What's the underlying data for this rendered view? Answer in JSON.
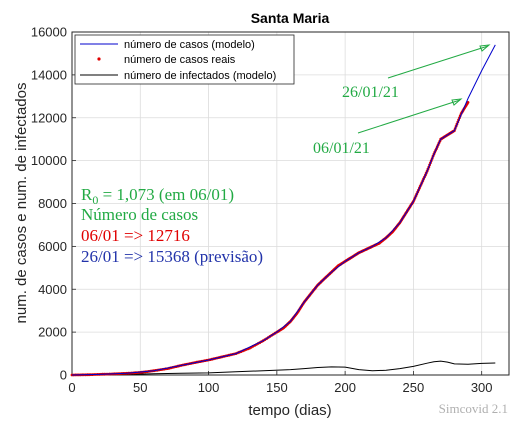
{
  "chart_data": {
    "type": "line",
    "title": "Santa Maria",
    "xlabel": "tempo (dias)",
    "ylabel": "num. de casos e num. de infectados",
    "xlim": [
      0,
      320
    ],
    "ylim": [
      0,
      16000
    ],
    "x_ticks": [
      0,
      50,
      100,
      150,
      200,
      250,
      300
    ],
    "y_ticks": [
      0,
      2000,
      4000,
      6000,
      8000,
      10000,
      12000,
      14000,
      16000
    ],
    "grid": true,
    "legend_position": "top-left",
    "series": [
      {
        "name": "número de casos (modelo)",
        "style": "line",
        "color": "#0000cc",
        "x": [
          0,
          20,
          40,
          60,
          80,
          100,
          120,
          140,
          150,
          160,
          170,
          180,
          190,
          200,
          210,
          220,
          230,
          240,
          250,
          260,
          265,
          270,
          280,
          290,
          300,
          310
        ],
        "y": [
          0,
          30,
          80,
          200,
          450,
          700,
          1000,
          1600,
          2000,
          2500,
          3400,
          4200,
          4800,
          5300,
          5700,
          6000,
          6400,
          7100,
          8100,
          9500,
          10300,
          11000,
          11400,
          12900,
          14200,
          15400
        ]
      },
      {
        "name": "número de casos reais",
        "style": "markers",
        "color": "#e00000",
        "x": [
          0,
          10,
          20,
          30,
          40,
          50,
          60,
          70,
          80,
          90,
          100,
          110,
          120,
          130,
          140,
          150,
          155,
          160,
          165,
          170,
          175,
          180,
          185,
          190,
          195,
          200,
          205,
          210,
          215,
          220,
          225,
          230,
          235,
          240,
          245,
          250,
          255,
          260,
          265,
          270,
          275,
          280,
          285,
          290
        ],
        "y": [
          0,
          10,
          30,
          50,
          80,
          120,
          200,
          300,
          450,
          580,
          700,
          850,
          1000,
          1250,
          1600,
          2000,
          2200,
          2500,
          2900,
          3400,
          3800,
          4200,
          4500,
          4800,
          5100,
          5300,
          5500,
          5700,
          5850,
          6000,
          6150,
          6400,
          6700,
          7100,
          7600,
          8100,
          8800,
          9500,
          10300,
          11000,
          11200,
          11400,
          12200,
          12716
        ]
      },
      {
        "name": "número de infectados (modelo)",
        "style": "line",
        "color": "#000000",
        "x": [
          0,
          20,
          40,
          60,
          80,
          100,
          120,
          140,
          160,
          170,
          180,
          190,
          200,
          210,
          220,
          230,
          240,
          250,
          260,
          265,
          270,
          275,
          280,
          290,
          300,
          310
        ],
        "y": [
          0,
          10,
          30,
          60,
          80,
          100,
          150,
          200,
          250,
          300,
          350,
          380,
          370,
          250,
          200,
          220,
          300,
          400,
          550,
          620,
          650,
          600,
          520,
          500,
          540,
          560
        ]
      }
    ],
    "annotations": [
      {
        "text": "26/01/21",
        "color": "#22aa44",
        "position": "upper-right"
      },
      {
        "text": "06/01/21",
        "color": "#22aa44",
        "position": "right"
      }
    ],
    "info_text": {
      "r0_label": "R",
      "r0_sub": "0",
      "r0_value": " = 1,073 (em 06/01)",
      "cases_heading": "Número de casos",
      "line_real": "06/01 => 12716",
      "line_forecast": "26/01 => 15368 (previsão)"
    },
    "watermark": "Simcovid 2.1"
  },
  "colors": {
    "annotation": "#22aa44",
    "real": "#e00000",
    "model": "#2233aa",
    "grid": "#dcdcdc"
  }
}
